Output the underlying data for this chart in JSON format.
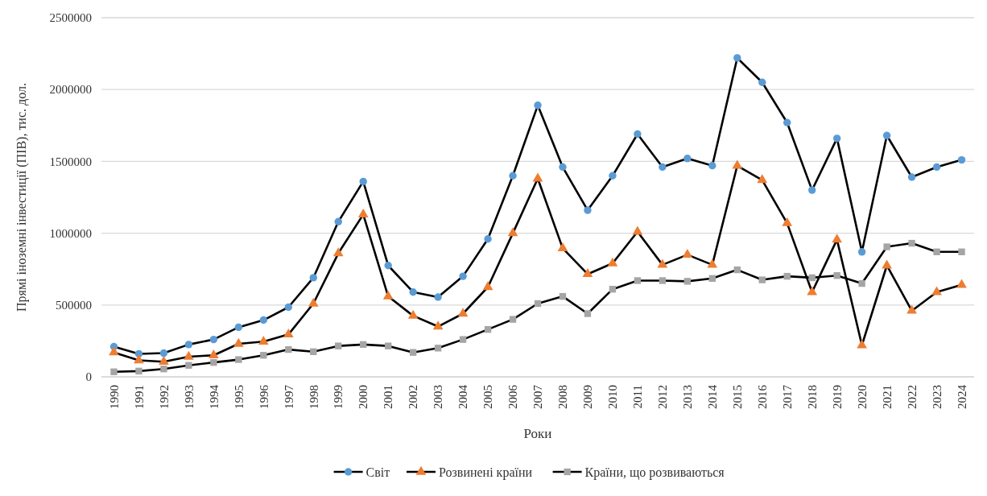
{
  "chart_data": {
    "type": "line",
    "xlabel": "Роки",
    "ylabel": "Прямі іноземні інвестиції (ПІВ), тис. дол.",
    "categories": [
      "1990",
      "1991",
      "1992",
      "1993",
      "1994",
      "1995",
      "1996",
      "1997",
      "1998",
      "1999",
      "2000",
      "2001",
      "2002",
      "2003",
      "2004",
      "2005",
      "2006",
      "2007",
      "2008",
      "2009",
      "2010",
      "2011",
      "2012",
      "2013",
      "2014",
      "2015",
      "2016",
      "2017",
      "2018",
      "2019",
      "2020",
      "2021",
      "2022",
      "2023",
      "2024"
    ],
    "series": [
      {
        "name": "Світ",
        "color": "#5b9bd5",
        "marker": "circle",
        "values": [
          210000,
          160000,
          165000,
          225000,
          260000,
          345000,
          395000,
          485000,
          690000,
          1080000,
          1360000,
          775000,
          590000,
          555000,
          700000,
          960000,
          1400000,
          1890000,
          1460000,
          1160000,
          1400000,
          1690000,
          1460000,
          1520000,
          1470000,
          2220000,
          2050000,
          1770000,
          1300000,
          1660000,
          870000,
          1680000,
          1390000,
          1460000,
          1510000
        ]
      },
      {
        "name": "Розвинені країни",
        "color": "#ed7d31",
        "marker": "triangle",
        "values": [
          170000,
          115000,
          105000,
          140000,
          150000,
          230000,
          245000,
          295000,
          510000,
          860000,
          1130000,
          560000,
          425000,
          350000,
          440000,
          625000,
          1000000,
          1380000,
          895000,
          715000,
          790000,
          1010000,
          780000,
          850000,
          780000,
          1470000,
          1370000,
          1070000,
          590000,
          955000,
          220000,
          775000,
          460000,
          590000,
          640000
        ]
      },
      {
        "name": "Країни, що розвиваються",
        "color": "#a5a5a5",
        "marker": "square",
        "values": [
          35000,
          40000,
          55000,
          80000,
          100000,
          120000,
          150000,
          190000,
          175000,
          215000,
          225000,
          215000,
          170000,
          200000,
          260000,
          330000,
          400000,
          510000,
          560000,
          440000,
          610000,
          670000,
          670000,
          665000,
          685000,
          745000,
          675000,
          700000,
          690000,
          705000,
          650000,
          905000,
          930000,
          870000,
          870000
        ]
      }
    ],
    "ylim": [
      0,
      2500000
    ],
    "yticks": [
      0,
      500000,
      1000000,
      1500000,
      2000000,
      2500000
    ],
    "grid": "y",
    "legend": "bottom",
    "line_style": "solid"
  }
}
